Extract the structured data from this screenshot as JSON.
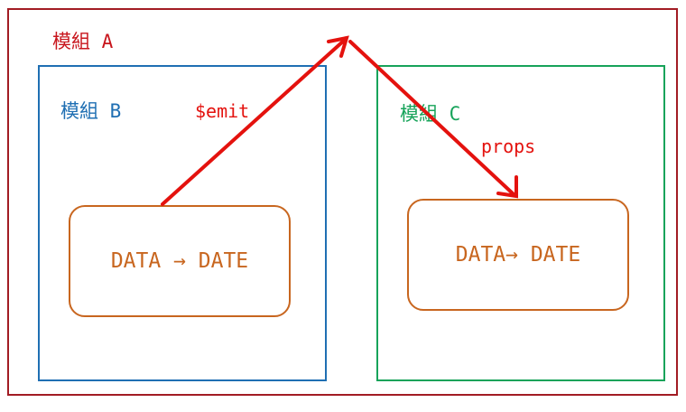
{
  "modules": {
    "a": {
      "label": "模組 A",
      "color": "#a21c24"
    },
    "b": {
      "label": "模組 B",
      "color": "#1f6fb3",
      "data_box_text": "DATA → DATE"
    },
    "c": {
      "label": "模組 C",
      "color": "#17a35a",
      "data_box_text": "DATA→ DATE"
    }
  },
  "arrows": {
    "emit_label": "$emit",
    "props_label": "props",
    "color": "#e4120e"
  },
  "data_box_color": "#c8661f"
}
